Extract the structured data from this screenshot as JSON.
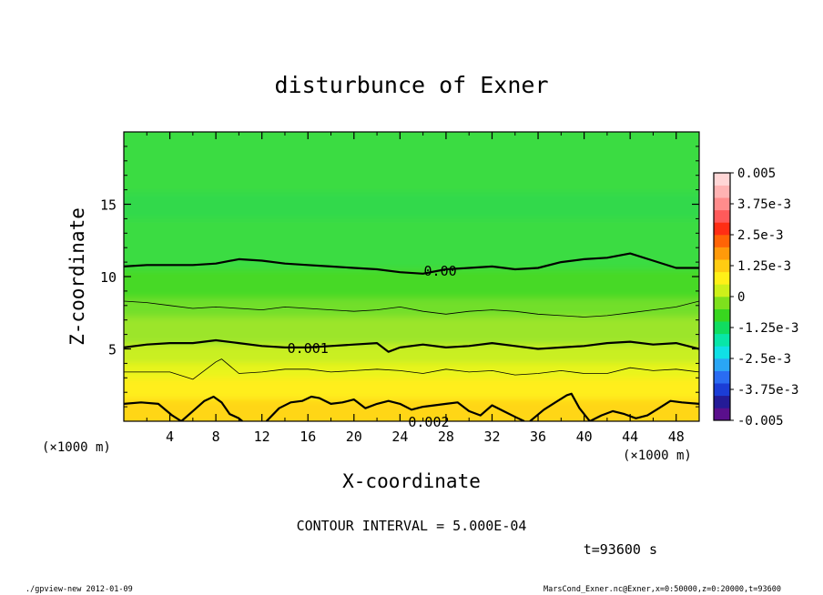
{
  "chart_data": {
    "type": "contour",
    "title": "disturbunce of Exner",
    "xlabel": "X-coordinate",
    "ylabel": "Z-coordinate",
    "x_unit_left": "(×1000 m)",
    "x_unit_right": "(×1000 m)",
    "xlim": [
      0,
      50
    ],
    "ylim": [
      0,
      20
    ],
    "x_ticks": [
      4,
      8,
      12,
      16,
      20,
      24,
      28,
      32,
      36,
      40,
      44,
      48
    ],
    "y_ticks": [
      5,
      10,
      15
    ],
    "contour_interval_text": "CONTOUR INTERVAL = 5.000E-04",
    "time_text": "t=93600 s",
    "colorbar": {
      "range": [
        -0.005,
        0.005
      ],
      "labels": [
        {
          "value": 0.005,
          "text": "0.005"
        },
        {
          "value": 0.00375,
          "text": "3.75e-3"
        },
        {
          "value": 0.0025,
          "text": "2.5e-3"
        },
        {
          "value": 0.00125,
          "text": "1.25e-3"
        },
        {
          "value": 0,
          "text": "0"
        },
        {
          "value": -0.00125,
          "text": "-1.25e-3"
        },
        {
          "value": -0.0025,
          "text": "-2.5e-3"
        },
        {
          "value": -0.00375,
          "text": "-3.75e-3"
        },
        {
          "value": -0.005,
          "text": "-0.005"
        }
      ],
      "colors": [
        "#5a0f8c",
        "#241b97",
        "#1b3dd6",
        "#2a6cf2",
        "#2aa6f5",
        "#10e0e6",
        "#08e6a8",
        "#10dd60",
        "#38d61f",
        "#7ee01d",
        "#cdf01a",
        "#fff018",
        "#ffcc12",
        "#ff9a0a",
        "#ff6406",
        "#ff2e14",
        "#ff5a5a",
        "#ff8c8c",
        "#ffb3b3",
        "#ffd6d6"
      ]
    },
    "fill_bands": [
      {
        "z_top": 20,
        "color": "#3bdc43"
      },
      {
        "z_top": 15.8,
        "color": "#33d94c"
      },
      {
        "z_top": 14.0,
        "color": "#3bdc43"
      },
      {
        "z_top": 10.5,
        "color": "#46d928"
      },
      {
        "z_top": 8.5,
        "color": "#72df2a"
      },
      {
        "z_top": 7.2,
        "color": "#9ce52a"
      },
      {
        "z_top": 5.3,
        "color": "#c9ef20"
      },
      {
        "z_top": 4.0,
        "color": "#e8f41e"
      },
      {
        "z_top": 3.0,
        "color": "#ffee1c"
      },
      {
        "z_top": 1.5,
        "color": "#ffd617"
      }
    ],
    "contours": [
      {
        "level_label": "0.00",
        "width": 2.2,
        "label_x": 27.5,
        "x": [
          0,
          2,
          4,
          6,
          8,
          10,
          12,
          14,
          16,
          18,
          20,
          22,
          24,
          26,
          28,
          30,
          32,
          34,
          36,
          38,
          40,
          42,
          44,
          46,
          48,
          50
        ],
        "z": [
          10.7,
          10.8,
          10.8,
          10.8,
          10.9,
          11.2,
          11.1,
          10.9,
          10.8,
          10.7,
          10.6,
          10.5,
          10.3,
          10.2,
          10.5,
          10.6,
          10.7,
          10.5,
          10.6,
          11.0,
          11.2,
          11.3,
          11.6,
          11.1,
          10.6,
          10.6
        ]
      },
      {
        "level_label": "",
        "width": 0.8,
        "label_x": 0,
        "x": [
          0,
          2,
          4,
          6,
          8,
          10,
          12,
          14,
          16,
          18,
          20,
          22,
          24,
          26,
          28,
          30,
          32,
          34,
          36,
          38,
          40,
          42,
          44,
          46,
          48,
          50
        ],
        "z": [
          8.3,
          8.2,
          8.0,
          7.8,
          7.9,
          7.8,
          7.7,
          7.9,
          7.8,
          7.7,
          7.6,
          7.7,
          7.9,
          7.6,
          7.4,
          7.6,
          7.7,
          7.6,
          7.4,
          7.3,
          7.2,
          7.3,
          7.5,
          7.7,
          7.9,
          8.3
        ]
      },
      {
        "level_label": "0.001",
        "width": 2.2,
        "label_x": 16,
        "x": [
          0,
          2,
          4,
          6,
          8,
          10,
          12,
          14,
          16,
          18,
          20,
          22,
          23,
          24,
          26,
          28,
          30,
          32,
          34,
          36,
          38,
          40,
          42,
          44,
          46,
          48,
          50
        ],
        "z": [
          5.1,
          5.3,
          5.4,
          5.4,
          5.6,
          5.4,
          5.2,
          5.1,
          5.1,
          5.2,
          5.3,
          5.4,
          4.8,
          5.1,
          5.3,
          5.1,
          5.2,
          5.4,
          5.2,
          5.0,
          5.1,
          5.2,
          5.4,
          5.5,
          5.3,
          5.4,
          5.0
        ]
      },
      {
        "level_label": "",
        "width": 0.8,
        "label_x": 0,
        "x": [
          0,
          2,
          4,
          6,
          8,
          8.5,
          10,
          12,
          14,
          16,
          18,
          20,
          22,
          24,
          26,
          28,
          30,
          32,
          34,
          36,
          38,
          40,
          42,
          44,
          46,
          48,
          50
        ],
        "z": [
          3.4,
          3.4,
          3.4,
          2.9,
          4.1,
          4.3,
          3.3,
          3.4,
          3.6,
          3.6,
          3.4,
          3.5,
          3.6,
          3.5,
          3.3,
          3.6,
          3.4,
          3.5,
          3.2,
          3.3,
          3.5,
          3.3,
          3.3,
          3.7,
          3.5,
          3.6,
          3.4
        ]
      },
      {
        "level_label": "0.002",
        "width": 2.2,
        "label_x": 26.5,
        "x": [
          0,
          1.5,
          3,
          4.2,
          5,
          6,
          7,
          7.8,
          8.5,
          9.2,
          10,
          10.3
        ],
        "z": [
          1.2,
          1.3,
          1.2,
          0.4,
          0.0,
          0.7,
          1.4,
          1.7,
          1.3,
          0.5,
          0.2,
          0.0
        ]
      },
      {
        "level_label": "",
        "width": 2.2,
        "label_x": 0,
        "x": [
          12.4,
          13.5,
          14.5,
          15.5,
          16.3,
          17,
          18,
          19,
          20,
          21,
          22,
          23,
          24,
          25,
          26,
          27,
          28,
          29,
          30,
          31,
          32,
          33,
          34,
          34.8
        ],
        "z": [
          0.0,
          0.9,
          1.3,
          1.4,
          1.7,
          1.6,
          1.2,
          1.3,
          1.5,
          0.9,
          1.2,
          1.4,
          1.2,
          0.8,
          1.0,
          1.1,
          1.2,
          1.3,
          0.7,
          0.4,
          1.1,
          0.7,
          0.3,
          0.0
        ]
      },
      {
        "level_label": "",
        "width": 2.2,
        "label_x": 0,
        "x": [
          35.3,
          36.5,
          37.5,
          38.5,
          38.9,
          39.6,
          40.5,
          41.5,
          42.5,
          43.5,
          44.5,
          45.5,
          46.5,
          47.5,
          48.5,
          50
        ],
        "z": [
          0.0,
          0.8,
          1.3,
          1.8,
          1.9,
          0.9,
          0.0,
          0.4,
          0.7,
          0.5,
          0.2,
          0.4,
          0.9,
          1.4,
          1.3,
          1.2
        ]
      }
    ]
  },
  "footer": {
    "left": "./gpview-new  2012-01-09",
    "right": "MarsCond_Exner.nc@Exner,x=0:50000,z=0:20000,t=93600"
  }
}
